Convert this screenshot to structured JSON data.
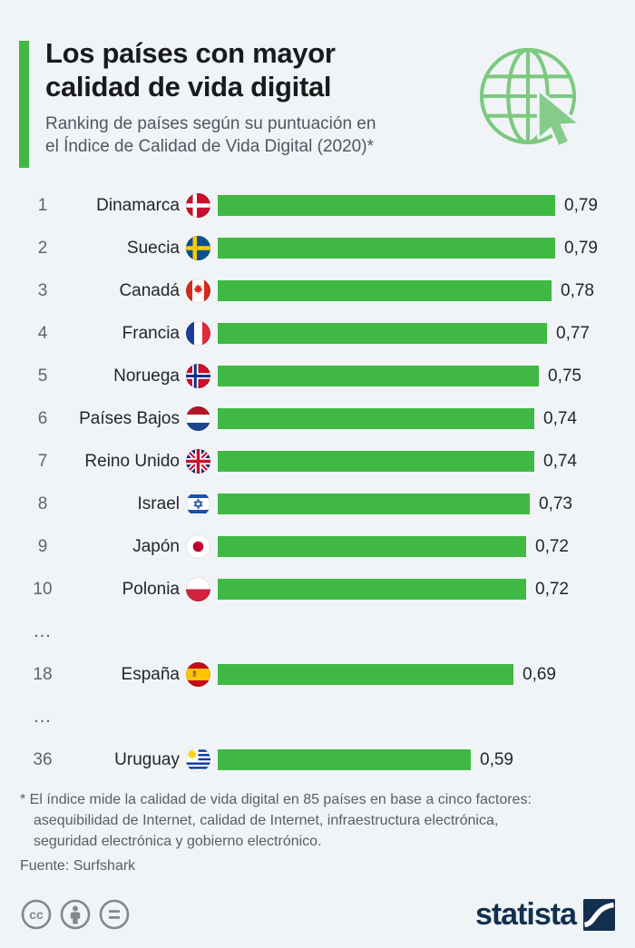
{
  "header": {
    "title_line1": "Los países con mayor",
    "title_line2": "calidad de vida digital",
    "subtitle_line1": "Ranking de países según su puntuación en",
    "subtitle_line2": "el Índice de Calidad de Vida Digital (2020)*"
  },
  "chart_data": {
    "type": "bar",
    "orientation": "horizontal",
    "title": "Los países con mayor calidad de vida digital",
    "subtitle": "Ranking de países según su puntuación en el Índice de Calidad de Vida Digital (2020)*",
    "value_range": [
      0,
      0.79
    ],
    "ellipsis": "...",
    "rows": [
      {
        "rank": "1",
        "country": "Dinamarca",
        "flag": "denmark",
        "value": 0.79,
        "value_label": "0,79"
      },
      {
        "rank": "2",
        "country": "Suecia",
        "flag": "sweden",
        "value": 0.79,
        "value_label": "0,79"
      },
      {
        "rank": "3",
        "country": "Canadá",
        "flag": "canada",
        "value": 0.78,
        "value_label": "0,78"
      },
      {
        "rank": "4",
        "country": "Francia",
        "flag": "france",
        "value": 0.77,
        "value_label": "0,77"
      },
      {
        "rank": "5",
        "country": "Noruega",
        "flag": "norway",
        "value": 0.75,
        "value_label": "0,75"
      },
      {
        "rank": "6",
        "country": "Países Bajos",
        "flag": "netherlands",
        "value": 0.74,
        "value_label": "0,74"
      },
      {
        "rank": "7",
        "country": "Reino Unido",
        "flag": "united-kingdom",
        "value": 0.74,
        "value_label": "0,74"
      },
      {
        "rank": "8",
        "country": "Israel",
        "flag": "israel",
        "value": 0.73,
        "value_label": "0,73"
      },
      {
        "rank": "9",
        "country": "Japón",
        "flag": "japan",
        "value": 0.72,
        "value_label": "0,72"
      },
      {
        "rank": "10",
        "country": "Polonia",
        "flag": "poland",
        "value": 0.72,
        "value_label": "0,72"
      },
      {
        "rank": "18",
        "country": "España",
        "flag": "spain",
        "value": 0.69,
        "value_label": "0,69"
      },
      {
        "rank": "36",
        "country": "Uruguay",
        "flag": "uruguay",
        "value": 0.59,
        "value_label": "0,59"
      }
    ]
  },
  "footer": {
    "footnote_line1": "* El índice mide la calidad de vida digital en 85 países en base a cinco factores:",
    "footnote_line2": "asequibilidad de Internet, calidad de Internet, infraestructura electrónica,",
    "footnote_line3": "seguridad electrónica y gobierno electrónico.",
    "source": "Fuente: Surfshark",
    "brand": "statista"
  },
  "colors": {
    "background": "#F0F4F7",
    "bar_green": "#3FB944",
    "accent_green": "#3FB944",
    "globe_green": "#7CC97F",
    "cursor_green": "#85CB8C",
    "icon_gray": "#81888E",
    "brand_navy": "#12304E"
  }
}
